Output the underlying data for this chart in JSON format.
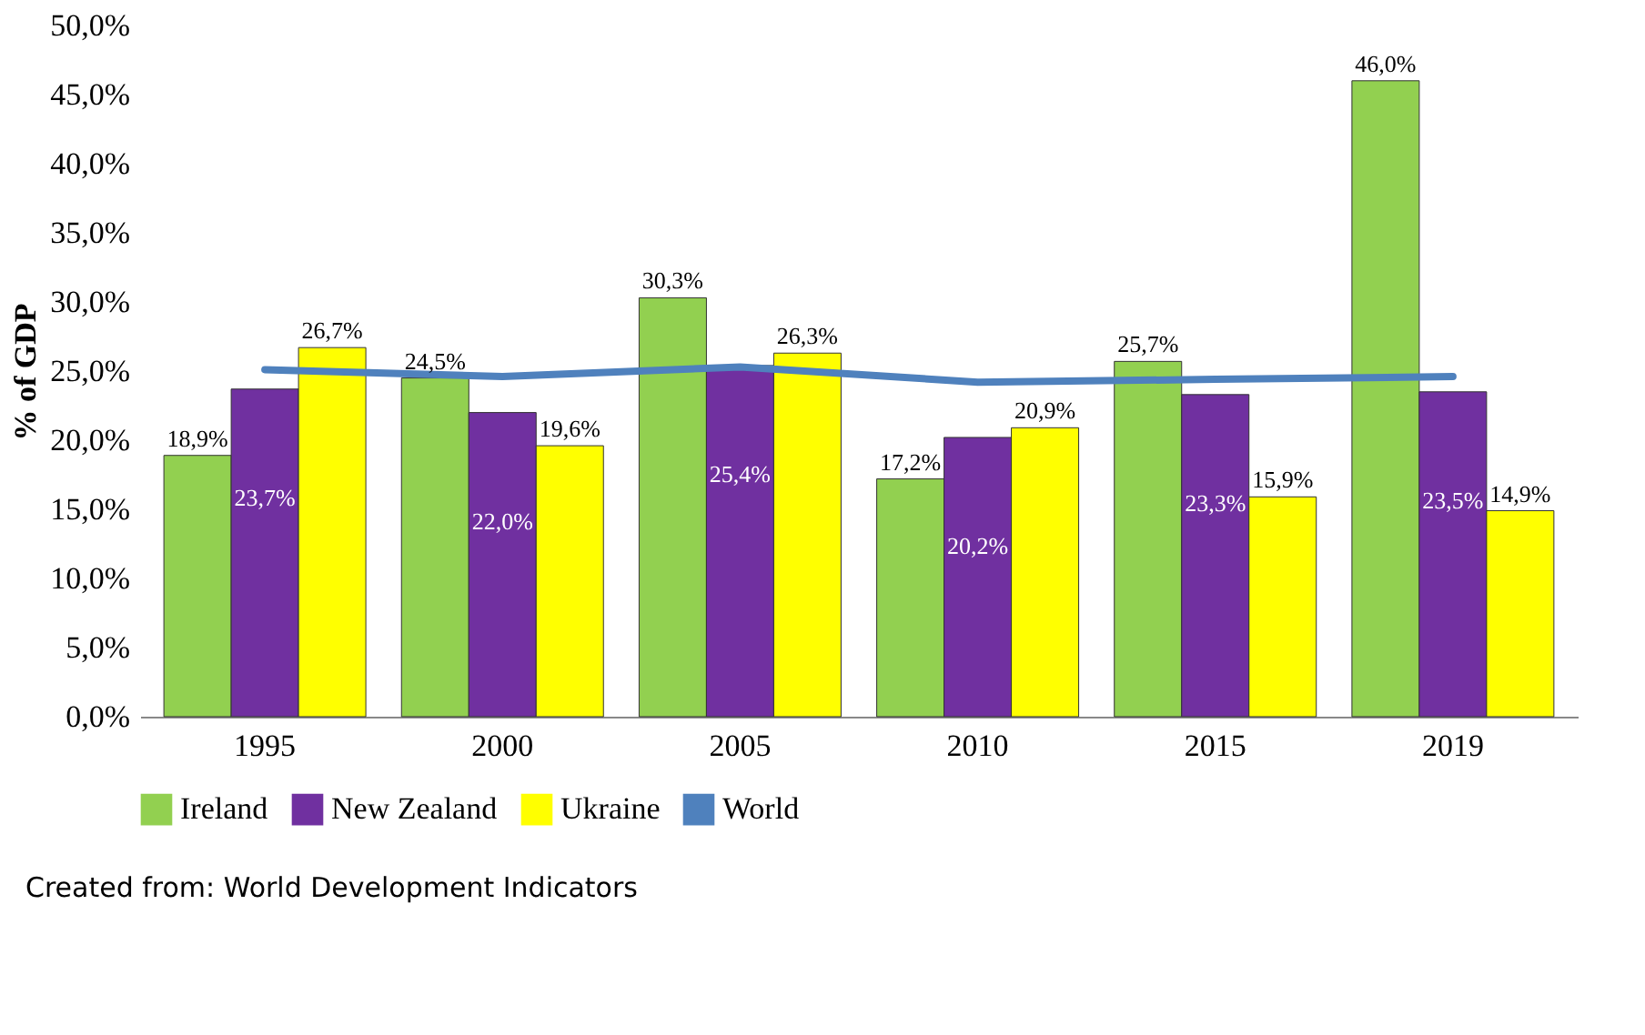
{
  "chart_data": {
    "type": "bar",
    "ylabel": "% of GDP",
    "categories": [
      "1995",
      "2000",
      "2005",
      "2010",
      "2015",
      "2019"
    ],
    "series": [
      {
        "name": "Ireland",
        "color": "#92d050",
        "values": [
          18.9,
          24.5,
          30.3,
          17.2,
          25.7,
          46.0
        ],
        "value_labels": [
          "18,9%",
          "24,5%",
          "30,3%",
          "17,2%",
          "25,7%",
          "46,0%"
        ]
      },
      {
        "name": "New Zealand",
        "color": "#7030a0",
        "values": [
          23.7,
          22.0,
          25.4,
          20.2,
          23.3,
          23.5
        ],
        "value_labels": [
          "23,7%",
          "22,0%",
          "25,4%",
          "20,2%",
          "23,3%",
          "23,5%"
        ]
      },
      {
        "name": "Ukraine",
        "color": "#ffff00",
        "values": [
          26.7,
          19.6,
          26.3,
          20.9,
          15.9,
          14.9
        ],
        "value_labels": [
          "26,7%",
          "19,6%",
          "26,3%",
          "20,9%",
          "15,9%",
          "14,9%"
        ]
      },
      {
        "name": "World",
        "type": "line",
        "color": "#4f81bd",
        "values": [
          25.1,
          24.6,
          25.3,
          24.2,
          24.4,
          24.6
        ]
      }
    ],
    "ylim": [
      0,
      50
    ],
    "yticks": [
      {
        "value": 0,
        "label": "0,0%"
      },
      {
        "value": 5,
        "label": "5,0%"
      },
      {
        "value": 10,
        "label": "10,0%"
      },
      {
        "value": 15,
        "label": "15,0%"
      },
      {
        "value": 20,
        "label": "20,0%"
      },
      {
        "value": 25,
        "label": "25,0%"
      },
      {
        "value": 30,
        "label": "30,0%"
      },
      {
        "value": 35,
        "label": "35,0%"
      },
      {
        "value": 40,
        "label": "40,0%"
      },
      {
        "value": 45,
        "label": "45,0%"
      },
      {
        "value": 50,
        "label": "50,0%"
      }
    ],
    "grid": false,
    "legend": "bottom",
    "annotations": [
      "Created from: World Development Indicators"
    ]
  }
}
